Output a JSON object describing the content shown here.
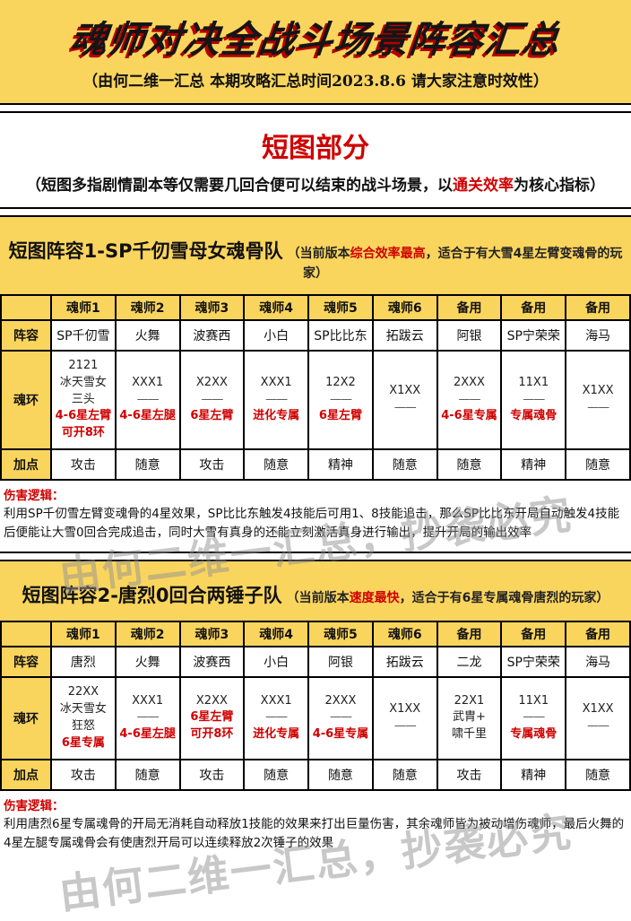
{
  "header": {
    "title": "魂师对决全战斗场景阵容汇总",
    "subtitle": "（由何二维一汇总 本期攻略汇总时间2023.8.6 请大家注意时效性）"
  },
  "intro": {
    "title": "短图部分",
    "subtitle_prefix": "（短图多指剧情副本等仅需要几回合便可以结束的战斗场景，以",
    "subtitle_highlight": "通关效率",
    "subtitle_suffix": "为核心指标）"
  },
  "watermark": "由何二维一汇总，抄袭必究",
  "colors": {
    "yellow": "#FAD55E",
    "red": "#CF0000"
  },
  "sections": [
    {
      "title": "短图阵容1-SP千仞雪母女魂骨队",
      "note_prefix": "（当前版本",
      "note_highlight": "综合效率最高",
      "note_suffix": "，适合于有大雪4星左臂变魂骨的玩家）",
      "table": {
        "corner": "",
        "col_headers": [
          "魂师1",
          "魂师2",
          "魂师3",
          "魂师4",
          "魂师5",
          "魂师6",
          "备用",
          "备用",
          "备用"
        ],
        "row_labels": [
          "阵容",
          "魂环",
          "加点"
        ],
        "lineup": [
          "SP千仞雪",
          "火舞",
          "波赛西",
          "小白",
          "SP比比东",
          "拓跋云",
          "阿银",
          "SP宁荣荣",
          "海马"
        ],
        "rings": [
          {
            "main": [
              "2121",
              "冰天雪女",
              "三头"
            ],
            "req": [
              "4-6星左臂",
              "可开8环"
            ]
          },
          {
            "main": [
              "XXX1",
              "——"
            ],
            "req": [
              "4-6星左腿"
            ]
          },
          {
            "main": [
              "X2XX",
              "——"
            ],
            "req": [
              "6星左臂"
            ]
          },
          {
            "main": [
              "XXX1",
              "——"
            ],
            "req": [
              "进化专属"
            ]
          },
          {
            "main": [
              "12X2",
              "——"
            ],
            "req": [
              "6星左臂"
            ]
          },
          {
            "main": [
              "X1XX",
              "——"
            ],
            "req": []
          },
          {
            "main": [
              "2XXX",
              "——"
            ],
            "req": [
              "4-6星专属"
            ]
          },
          {
            "main": [
              "11X1",
              "——"
            ],
            "req": [
              "专属魂骨"
            ]
          },
          {
            "main": [
              "X1XX",
              "——"
            ],
            "req": []
          }
        ],
        "stats": [
          "攻击",
          "随意",
          "攻击",
          "随意",
          "精神",
          "随意",
          "随意",
          "精神",
          "随意"
        ]
      },
      "damage_label": "伤害逻辑：",
      "damage_text": "利用SP千仞雪左臂变魂骨的4星效果，SP比比东触发4技能后可用1、8技能追击，那么SP比比东开局自动触发4技能后便能让大雪0回合完成追击，同时大雪有真身的还能立刻激活真身进行输出，提升开局的输出效率"
    },
    {
      "title": "短图阵容2-唐烈0回合两锤子队",
      "note_prefix": "（当前版本",
      "note_highlight": "速度最快",
      "note_suffix": "，适合于有6星专属魂骨唐烈的玩家）",
      "table": {
        "corner": "",
        "col_headers": [
          "魂师1",
          "魂师2",
          "魂师3",
          "魂师4",
          "魂师5",
          "魂师6",
          "备用",
          "备用",
          "备用"
        ],
        "row_labels": [
          "阵容",
          "魂环",
          "加点"
        ],
        "lineup": [
          "唐烈",
          "火舞",
          "波赛西",
          "小白",
          "阿银",
          "拓跋云",
          "二龙",
          "SP宁荣荣",
          "海马"
        ],
        "rings": [
          {
            "main": [
              "22XX",
              "冰天雪女",
              "狂怒"
            ],
            "req": [
              "6星专属"
            ]
          },
          {
            "main": [
              "XXX1",
              "——"
            ],
            "req": [
              "4-6星左腿"
            ]
          },
          {
            "main": [
              "X2XX"
            ],
            "req": [
              "6星左臂",
              "可开8环"
            ]
          },
          {
            "main": [
              "XXX1",
              "——"
            ],
            "req": [
              "进化专属"
            ]
          },
          {
            "main": [
              "2XXX",
              "——"
            ],
            "req": [
              "4-6星专属"
            ]
          },
          {
            "main": [
              "X1XX",
              "——"
            ],
            "req": []
          },
          {
            "main": [
              "22X1",
              "武胄+",
              "啸千里"
            ],
            "req": []
          },
          {
            "main": [
              "11X1",
              "——"
            ],
            "req": [
              "专属魂骨"
            ]
          },
          {
            "main": [
              "X1XX",
              "——"
            ],
            "req": []
          }
        ],
        "stats": [
          "攻击",
          "随意",
          "攻击",
          "随意",
          "随意",
          "随意",
          "攻击",
          "精神",
          "随意"
        ]
      },
      "damage_label": "伤害逻辑：",
      "damage_text": "利用唐烈6星专属魂骨的开局无消耗自动释放1技能的效果来打出巨量伤害，其余魂师皆为被动增伤魂师，最后火舞的4星左腿专属魂骨会有使唐烈开局可以连续释放2次锤子的效果"
    }
  ]
}
